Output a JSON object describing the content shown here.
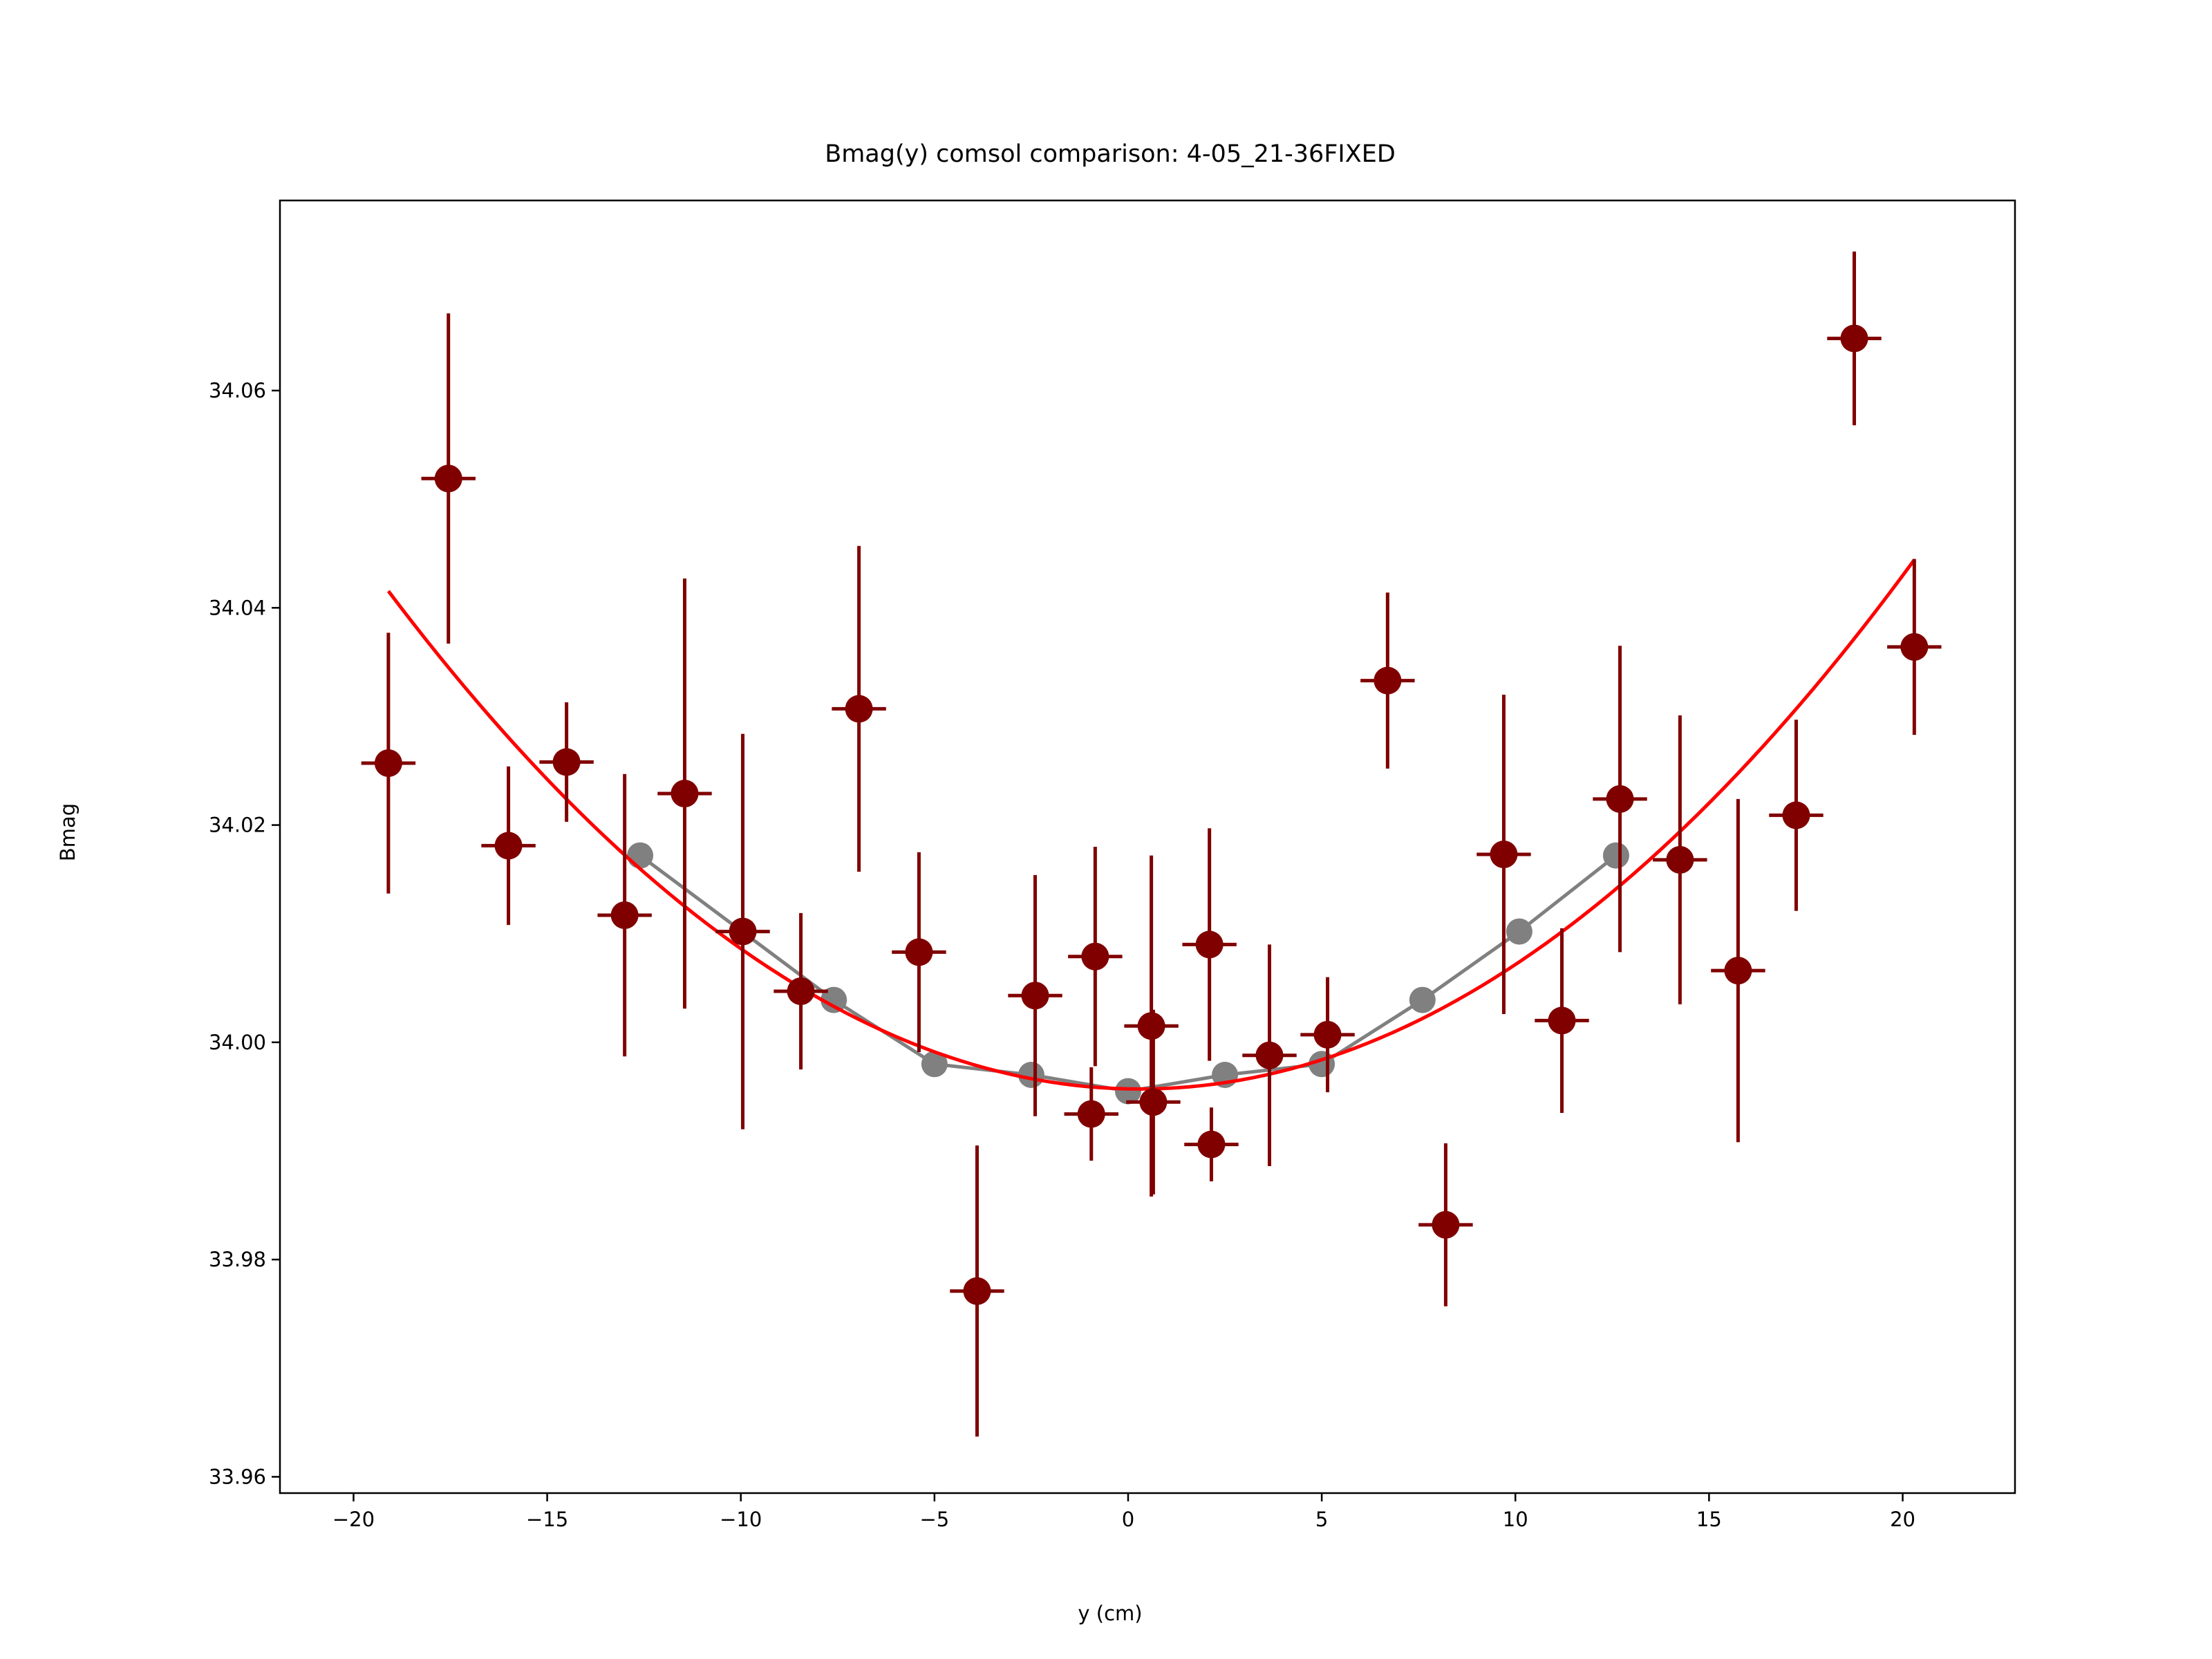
{
  "chart_data": {
    "type": "scatter",
    "title": "Bmag(y) comsol comparison: 4-05_21-36FIXED",
    "xlabel": "y (cm)",
    "ylabel": "Bmag",
    "xlim": [
      -21.9,
      22.9
    ],
    "ylim": [
      33.9585,
      34.0775
    ],
    "xticks": [
      -20,
      -15,
      -10,
      -5,
      0,
      5,
      10,
      15,
      20
    ],
    "xtick_labels": [
      "−20",
      "−15",
      "−10",
      "−5",
      "0",
      "5",
      "10",
      "15",
      "20"
    ],
    "yticks": [
      33.96,
      33.98,
      34.0,
      34.02,
      34.04,
      34.06
    ],
    "ytick_labels": [
      "33.96",
      "33.98",
      "34.00",
      "34.02",
      "34.04",
      "34.06"
    ],
    "grid": false,
    "colors": {
      "measured": "#800000",
      "comsol": "#808080",
      "fit": "#ff0000"
    },
    "series": [
      {
        "kind": "errorbar",
        "x": [
          -19.1,
          -17.55,
          -16.0,
          -14.5,
          -13.0,
          -11.45,
          -9.95,
          -8.45,
          -6.95,
          -5.4,
          -3.9,
          -2.4,
          -0.85,
          -0.95,
          0.6,
          0.65,
          2.1,
          2.15,
          3.65,
          5.15,
          6.7,
          8.2,
          9.7,
          11.2,
          12.7,
          14.25,
          15.75,
          17.25,
          18.75,
          20.3
        ],
        "y": [
          34.0257,
          34.0519,
          34.0181,
          34.0258,
          34.0117,
          34.0229,
          34.0102,
          34.0047,
          34.0307,
          34.0083,
          33.9771,
          34.0043,
          34.0079,
          33.9934,
          34.0015,
          33.9945,
          34.009,
          33.9906,
          33.9988,
          34.0007,
          34.0333,
          33.9832,
          34.0173,
          34.002,
          34.0224,
          34.0168,
          34.0066,
          34.0209,
          34.0648,
          34.0364
        ],
        "yerr": [
          0.012,
          0.0152,
          0.0073,
          0.0055,
          0.013,
          0.0198,
          0.0182,
          0.0072,
          0.015,
          0.0092,
          0.0134,
          0.0111,
          0.0101,
          0.0043,
          0.0157,
          0.0085,
          0.0107,
          0.0034,
          0.0102,
          0.0053,
          0.0081,
          0.0075,
          0.0147,
          0.0085,
          0.0141,
          0.0133,
          0.0158,
          0.0088,
          0.008,
          0.0081
        ],
        "xerr": 0.7
      },
      {
        "kind": "line-markers",
        "x": [
          -12.6,
          -7.6,
          -5.0,
          -2.5,
          0.0,
          2.5,
          5.0,
          7.6,
          10.1,
          12.6
        ],
        "y": [
          34.0172,
          34.0039,
          33.998,
          33.997,
          33.9955,
          33.997,
          33.998,
          34.0039,
          34.0102,
          34.0172
        ]
      },
      {
        "kind": "fit-curve",
        "x0": 0.3,
        "y0": 33.9957,
        "k": 0.0001218,
        "range": [
          -19.1,
          20.3
        ]
      }
    ]
  }
}
